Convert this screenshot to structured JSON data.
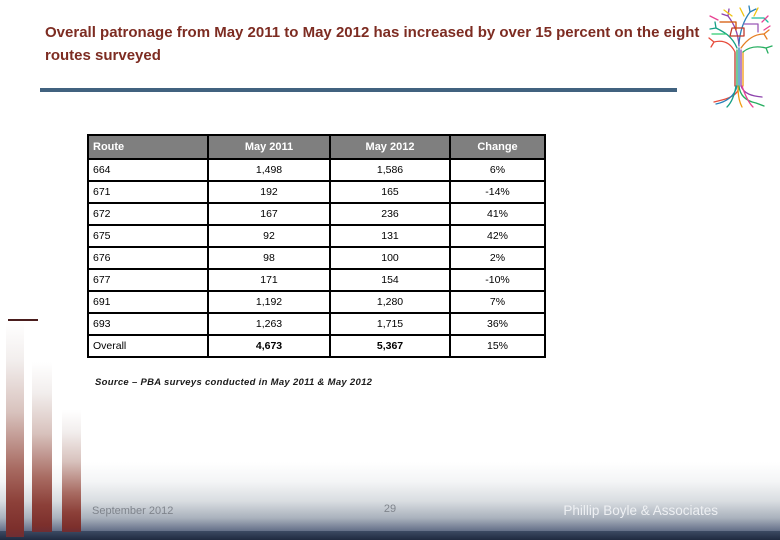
{
  "slide": {
    "title": "Overall patronage from May 2011 to May 2012 has increased by over 15 percent on the eight routes surveyed",
    "source_note": "Source – PBA surveys conducted in May 2011 & May 2012"
  },
  "table": {
    "headers": [
      "Route",
      "May 2011",
      "May 2012",
      "Change"
    ],
    "rows": [
      {
        "cells": [
          "664",
          "1,498",
          "1,586",
          "6%"
        ],
        "total": false
      },
      {
        "cells": [
          "671",
          "192",
          "165",
          "-14%"
        ],
        "total": false
      },
      {
        "cells": [
          "672",
          "167",
          "236",
          "41%"
        ],
        "total": false
      },
      {
        "cells": [
          "675",
          "92",
          "131",
          "42%"
        ],
        "total": false
      },
      {
        "cells": [
          "676",
          "98",
          "100",
          "2%"
        ],
        "total": false
      },
      {
        "cells": [
          "677",
          "171",
          "154",
          "-10%"
        ],
        "total": false
      },
      {
        "cells": [
          "691",
          "1,192",
          "1,280",
          "7%"
        ],
        "total": false
      },
      {
        "cells": [
          "693",
          "1,263",
          "1,715",
          "36%"
        ],
        "total": false
      },
      {
        "cells": [
          "Overall",
          "4,673",
          "5,367",
          "15%"
        ],
        "total": true
      }
    ]
  },
  "footer": {
    "date": "September 2012",
    "page_number": "29",
    "company": "Phillip Boyle & Associates"
  },
  "logo": {
    "name": "transit-map-tree-logo"
  },
  "colors": {
    "title_text": "#7d2c22",
    "divider": "#41627f",
    "table_header_bg": "#7f7f7f",
    "bar_maroon": "#7c2f2c",
    "footer_navy": "#273349"
  }
}
